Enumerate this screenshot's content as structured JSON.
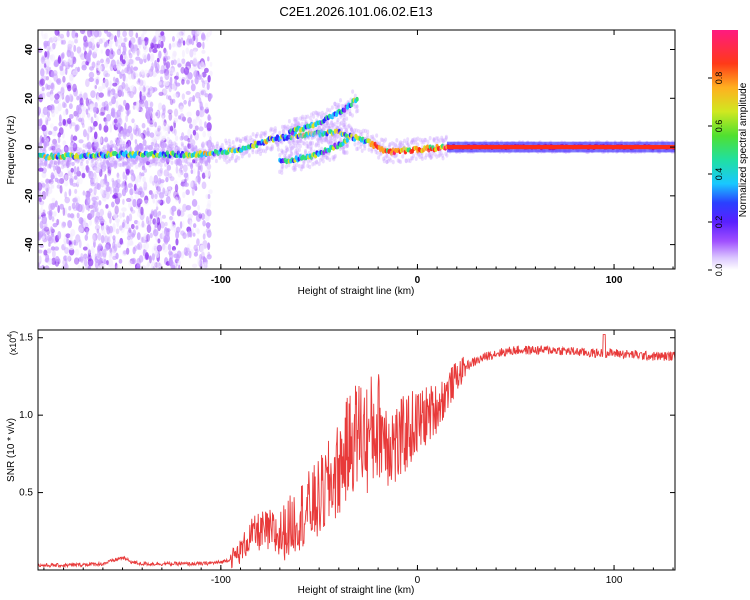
{
  "title": "C2E1.2026.101.06.02.E13",
  "colors": {
    "snr_line": "#e83a3a",
    "ridge": "#ff2a1a",
    "colormap": [
      "#f2eaff",
      "#c79cff",
      "#8a2ef0",
      "#2d24ff",
      "#19c8ff",
      "#2fe07a",
      "#d8e620",
      "#ff9f1a",
      "#ff2a1a",
      "#ff1a6a"
    ]
  },
  "chart_data": [
    {
      "type": "heatmap",
      "title": "C2E1.2026.101.06.02.E13",
      "xlabel": "Height of straight line (km)",
      "ylabel": "Frequency (Hz)",
      "xlim": [
        -193,
        131
      ],
      "ylim": [
        -50,
        48
      ],
      "xticks": [
        -100,
        0,
        100
      ],
      "xtick_labels": [
        "-100",
        "0",
        "100"
      ],
      "yticks": [
        -40,
        -20,
        0,
        20,
        40
      ],
      "ytick_labels": [
        "-40",
        "-20",
        "0",
        "20",
        "40"
      ],
      "colorbar": {
        "label": "Normalized spectral amplitude",
        "range": [
          0,
          1
        ],
        "ticks": [
          0.0,
          0.2,
          0.4,
          0.6,
          0.8
        ],
        "tick_labels": [
          "0.0",
          "0.2",
          "0.4",
          "0.6",
          "0.8"
        ]
      },
      "features": [
        {
          "name": "main ridge",
          "x": [
            -193,
            -150,
            -110,
            -90,
            -75,
            -60,
            -40,
            -25,
            -15,
            0,
            15,
            131
          ],
          "y": [
            -4,
            -3,
            -3,
            -1,
            3,
            5,
            6,
            2,
            -2,
            -1,
            0,
            0
          ]
        },
        {
          "name": "upper branch",
          "x": [
            -65,
            -50,
            -38,
            -30
          ],
          "y": [
            6,
            10,
            15,
            20
          ]
        },
        {
          "name": "lower branch",
          "x": [
            -70,
            -55,
            -45,
            -35
          ],
          "y": [
            -6,
            -4,
            -1,
            3
          ]
        },
        {
          "name": "noise band 1",
          "x_range": [
            -193,
            -150
          ],
          "y_range": [
            -50,
            48
          ]
        },
        {
          "name": "noise band 2",
          "x_range": [
            -150,
            -105
          ],
          "y_range": [
            -50,
            48
          ]
        }
      ]
    },
    {
      "type": "line",
      "xlabel": "Height of straight line (km)",
      "ylabel": "SNR (10 * v/v)",
      "multiplier_label": "(x10",
      "multiplier_exponent": "4",
      "multiplier_close": ")",
      "xlim": [
        -193,
        131
      ],
      "ylim": [
        0,
        1.55
      ],
      "xticks": [
        -100,
        0,
        100
      ],
      "xtick_labels": [
        "-100",
        "0",
        "100"
      ],
      "yticks": [
        0.5,
        1.0,
        1.5
      ],
      "ytick_labels": [
        "0.5",
        "1.0",
        "1.5"
      ],
      "series": [
        {
          "name": "SNR",
          "x": [
            -193,
            -180,
            -160,
            -150,
            -145,
            -140,
            -130,
            -120,
            -110,
            -100,
            -95,
            -90,
            -85,
            -80,
            -75,
            -70,
            -65,
            -60,
            -55,
            -50,
            -45,
            -40,
            -35,
            -30,
            -25,
            -20,
            -15,
            -10,
            -5,
            0,
            5,
            10,
            15,
            20,
            25,
            30,
            35,
            40,
            50,
            60,
            70,
            80,
            90,
            100,
            110,
            120,
            131
          ],
          "y": [
            0.03,
            0.03,
            0.04,
            0.08,
            0.05,
            0.04,
            0.04,
            0.04,
            0.04,
            0.05,
            0.07,
            0.12,
            0.22,
            0.25,
            0.24,
            0.22,
            0.28,
            0.35,
            0.4,
            0.45,
            0.55,
            0.65,
            0.8,
            0.9,
            0.85,
            0.95,
            0.85,
            0.8,
            0.9,
            0.95,
            1.0,
            1.05,
            1.15,
            1.25,
            1.32,
            1.35,
            1.38,
            1.4,
            1.42,
            1.42,
            1.42,
            1.41,
            1.4,
            1.4,
            1.39,
            1.38,
            1.38
          ]
        }
      ]
    }
  ]
}
